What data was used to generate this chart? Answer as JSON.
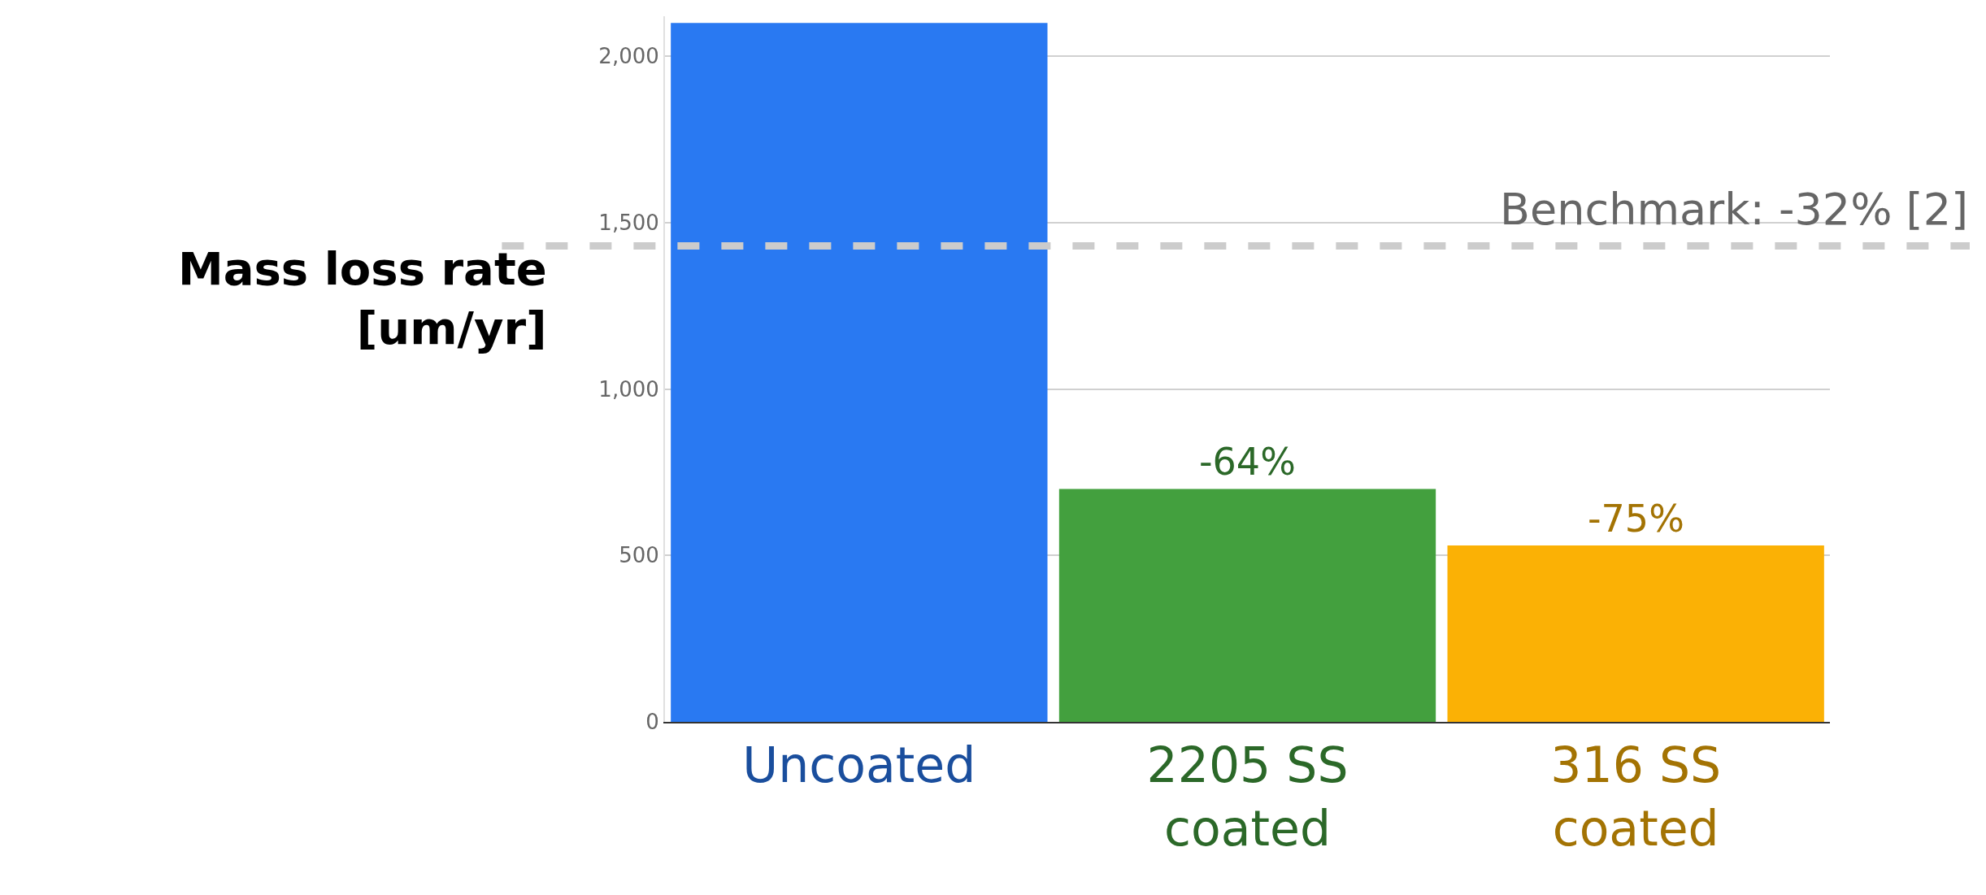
{
  "chart_data": {
    "type": "bar",
    "ylabel": "Mass loss rate\n[um/yr]",
    "categories": [
      "Uncoated",
      "2205 SS\ncoated",
      "316 SS\ncoated"
    ],
    "values": [
      2100,
      700,
      530
    ],
    "colors": [
      "#2979f2",
      "#43a03e",
      "#fbb105"
    ],
    "ylim": [
      0,
      2120
    ],
    "yticks": [
      {
        "value": 0,
        "label": "0"
      },
      {
        "value": 500,
        "label": "500"
      },
      {
        "value": 1000,
        "label": "1,000"
      },
      {
        "value": 1500,
        "label": "1,500"
      },
      {
        "value": 2000,
        "label": "2,000"
      }
    ],
    "grid": "y",
    "ref_lines": [
      {
        "axis": "y",
        "value": 1430,
        "color": "#cccccc",
        "line_style": "dashed"
      }
    ],
    "annotations": [
      {
        "text": "-64%",
        "x": "2205 SS\ncoated",
        "y": 700
      },
      {
        "text": "-75%",
        "x": "316 SS\ncoated",
        "y": 530
      },
      "Benchmark: -32% [2]"
    ]
  }
}
